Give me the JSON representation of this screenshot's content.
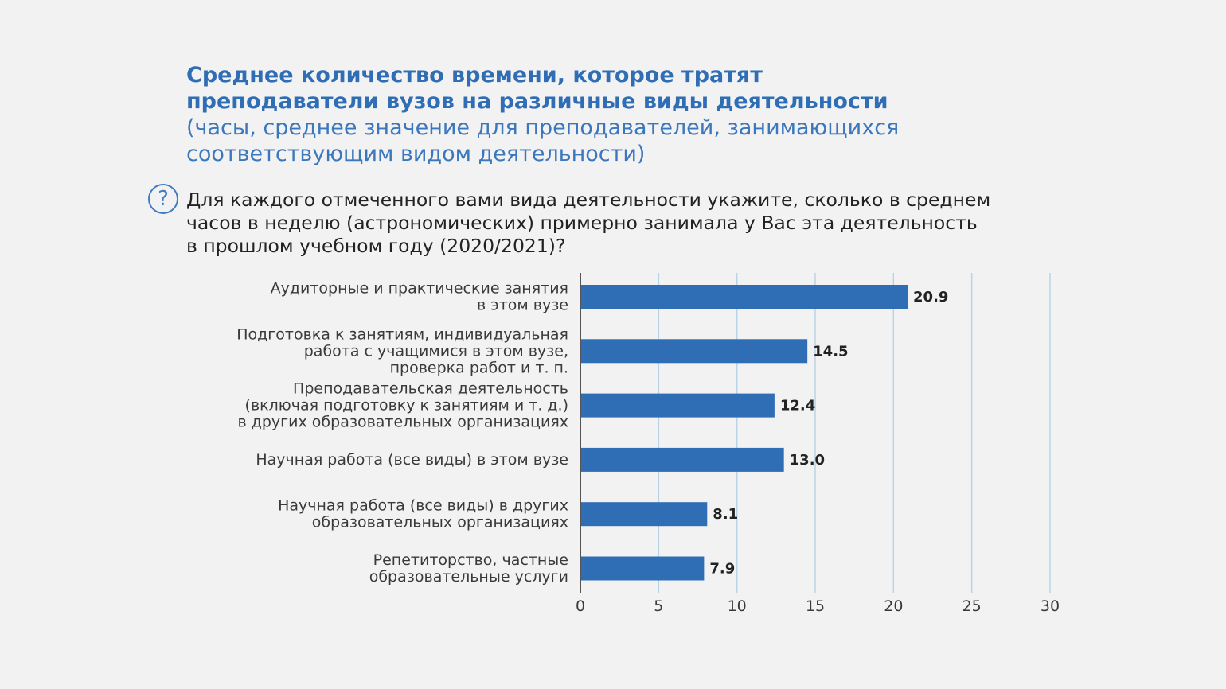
{
  "header": {
    "title_lines": [
      "Среднее количество времени, которое тратят",
      "преподаватели вузов на различные виды деятельности"
    ],
    "subtitle_lines": [
      "(часы, среднее значение для преподавателей, занимающихся",
      "соответствующим видом деятельности)"
    ]
  },
  "question": {
    "icon": "question-icon",
    "icon_glyph": "?",
    "lines": [
      "Для каждого отмеченного вами вида деятельности укажите, сколько в среднем",
      "часов в неделю (астрономических) примерно занимала у Вас эта деятельность",
      "в прошлом учебном году (2020/2021)?"
    ]
  },
  "chart_data": {
    "type": "bar",
    "orientation": "horizontal",
    "title": "",
    "xlabel": "",
    "ylabel": "",
    "categories": [
      [
        "Аудиторные и практические занятия",
        "в этом вузе"
      ],
      [
        "Подготовка к занятиям, индивидуальная",
        "работа с учащимися в этом вузе,",
        "проверка работ и т. п."
      ],
      [
        "Преподавательская деятельность",
        "(включая подготовку к занятиям и т. д.)",
        "в других образовательных организациях"
      ],
      [
        "Научная работа (все виды) в этом вузе"
      ],
      [
        "Научная работа (все виды) в других",
        "образовательных организациях"
      ],
      [
        "Репетиторство, частные",
        "образовательные услуги"
      ]
    ],
    "values": [
      20.9,
      14.5,
      12.4,
      13.0,
      8.1,
      7.9
    ],
    "value_labels": [
      "20.9",
      "14.5",
      "12.4",
      "13.0",
      "8.1",
      "7.9"
    ],
    "xlim": [
      0,
      30
    ],
    "xticks": [
      0,
      5,
      10,
      15,
      20,
      25,
      30
    ],
    "grid": "vertical",
    "bar_color": "#2f6db5",
    "grid_color": "#b9d3e6",
    "axis_color": "#555555"
  }
}
